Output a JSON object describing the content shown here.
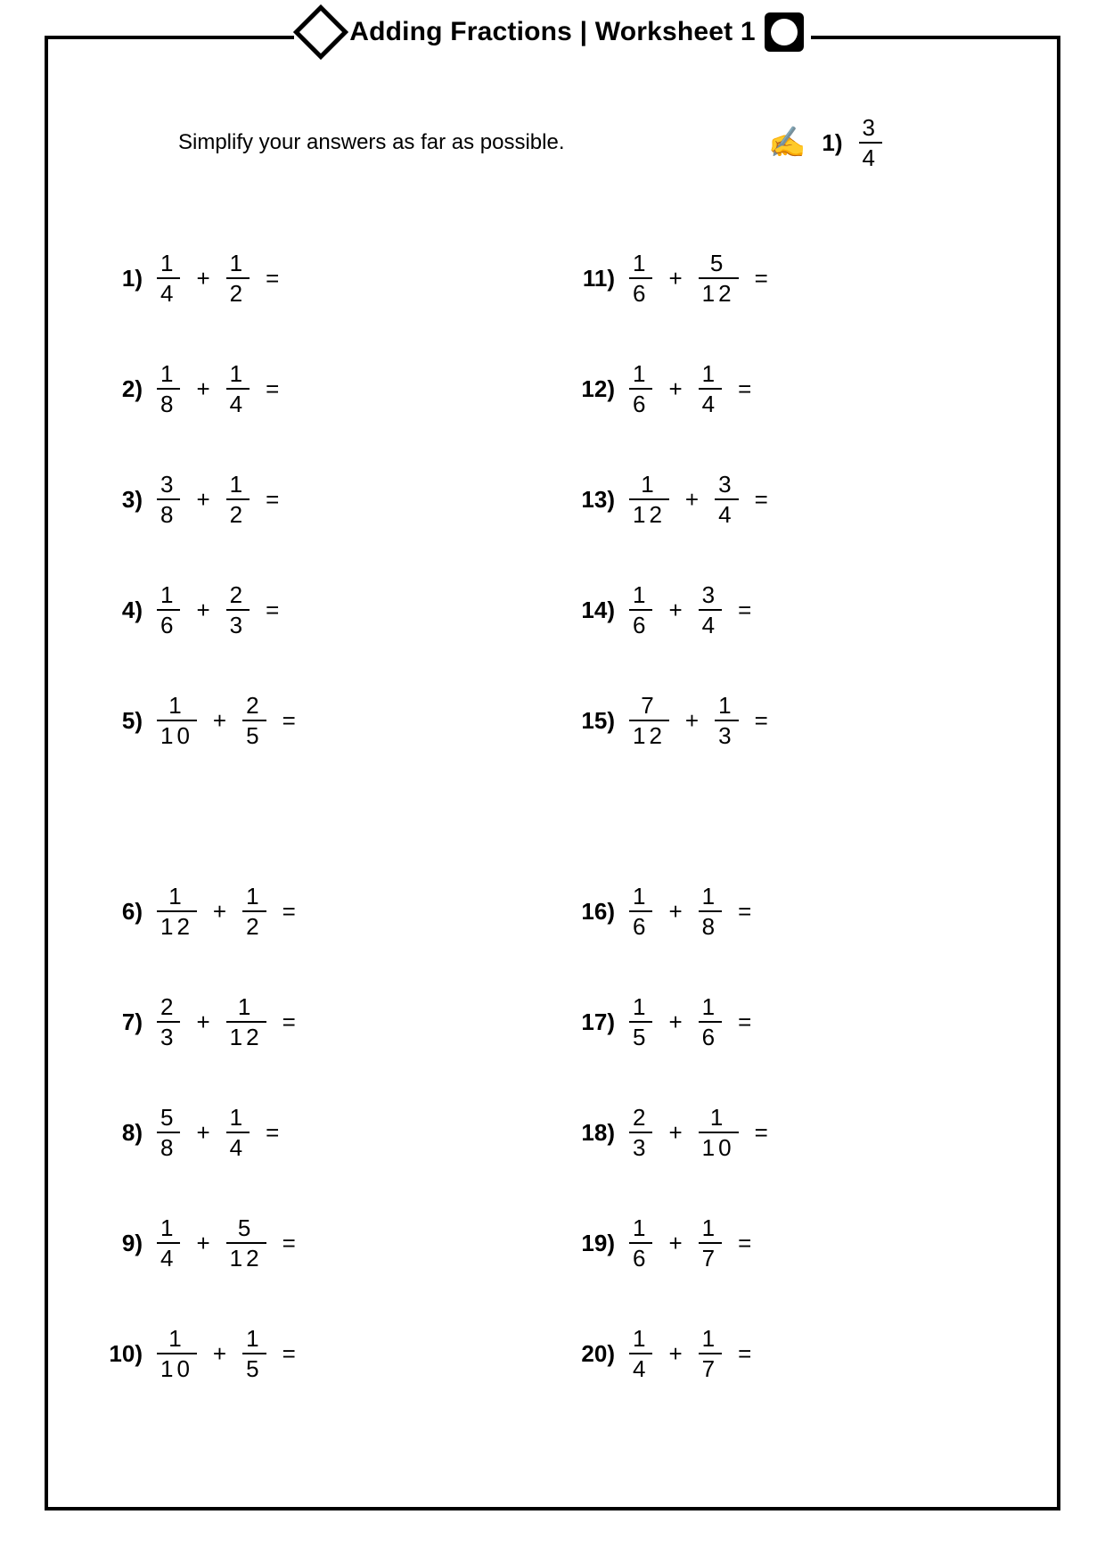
{
  "title": "Adding Fractions | Worksheet 1",
  "instructions": "Simplify your answers as far as possible.",
  "example": {
    "label": "1)",
    "numerator": "3",
    "denominator": "4"
  },
  "op_plus": "+",
  "op_eq": "=",
  "hand_icon": "✍",
  "columns": {
    "left": [
      {
        "n": "1)",
        "a_num": "1",
        "a_den": "4",
        "b_num": "1",
        "b_den": "2"
      },
      {
        "n": "2)",
        "a_num": "1",
        "a_den": "8",
        "b_num": "1",
        "b_den": "4"
      },
      {
        "n": "3)",
        "a_num": "3",
        "a_den": "8",
        "b_num": "1",
        "b_den": "2"
      },
      {
        "n": "4)",
        "a_num": "1",
        "a_den": "6",
        "b_num": "2",
        "b_den": "3"
      },
      {
        "n": "5)",
        "a_num": "1",
        "a_den": "10",
        "b_num": "2",
        "b_den": "5"
      },
      {
        "n": "6)",
        "a_num": "1",
        "a_den": "12",
        "b_num": "1",
        "b_den": "2"
      },
      {
        "n": "7)",
        "a_num": "2",
        "a_den": "3",
        "b_num": "1",
        "b_den": "12"
      },
      {
        "n": "8)",
        "a_num": "5",
        "a_den": "8",
        "b_num": "1",
        "b_den": "4"
      },
      {
        "n": "9)",
        "a_num": "1",
        "a_den": "4",
        "b_num": "5",
        "b_den": "12"
      },
      {
        "n": "10)",
        "a_num": "1",
        "a_den": "10",
        "b_num": "1",
        "b_den": "5"
      }
    ],
    "right": [
      {
        "n": "11)",
        "a_num": "1",
        "a_den": "6",
        "b_num": "5",
        "b_den": "12"
      },
      {
        "n": "12)",
        "a_num": "1",
        "a_den": "6",
        "b_num": "1",
        "b_den": "4"
      },
      {
        "n": "13)",
        "a_num": "1",
        "a_den": "12",
        "b_num": "3",
        "b_den": "4"
      },
      {
        "n": "14)",
        "a_num": "1",
        "a_den": "6",
        "b_num": "3",
        "b_den": "4"
      },
      {
        "n": "15)",
        "a_num": "7",
        "a_den": "12",
        "b_num": "1",
        "b_den": "3"
      },
      {
        "n": "16)",
        "a_num": "1",
        "a_den": "6",
        "b_num": "1",
        "b_den": "8"
      },
      {
        "n": "17)",
        "a_num": "1",
        "a_den": "5",
        "b_num": "1",
        "b_den": "6"
      },
      {
        "n": "18)",
        "a_num": "2",
        "a_den": "3",
        "b_num": "1",
        "b_den": "10"
      },
      {
        "n": "19)",
        "a_num": "1",
        "a_den": "6",
        "b_num": "1",
        "b_den": "7"
      },
      {
        "n": "20)",
        "a_num": "1",
        "a_den": "4",
        "b_num": "1",
        "b_den": "7"
      }
    ]
  }
}
